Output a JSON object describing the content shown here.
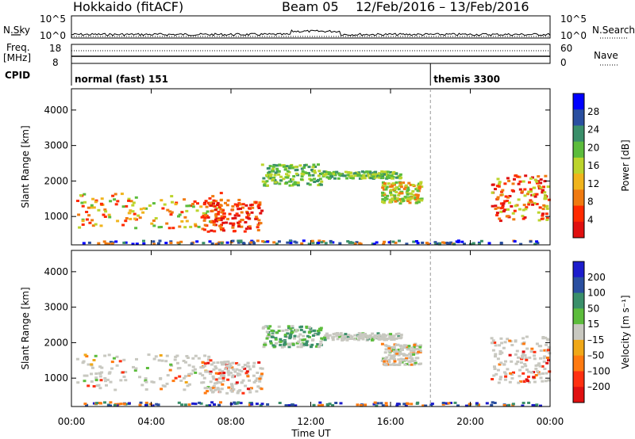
{
  "header": {
    "station": "Hokkaido (fitACF)",
    "beam": "Beam 05",
    "date_range": "12/Feb/2016 – 13/Feb/2016"
  },
  "status": {
    "left_top": "N.Sky",
    "left_freq_1": "Freq.",
    "left_freq_2": "[MHz]",
    "left_cpid": "CPID",
    "right_top": "N.Search",
    "right_mid": "Nave",
    "nsky_ticks": [
      "10^5",
      "10^0"
    ],
    "nsearch_ticks": [
      "10^5",
      "10^0"
    ],
    "freq_ticks": [
      "18",
      "8"
    ],
    "nave_ticks": [
      "60",
      "0"
    ],
    "cpid_labels": [
      {
        "text": "normal (fast) 151",
        "start_hour": 0
      },
      {
        "text": "themis 3300",
        "start_hour": 18
      }
    ]
  },
  "colors": {
    "power_scale": [
      "#0000ff",
      "#2a4fa0",
      "#3a8f6a",
      "#5cbc3c",
      "#bcd42c",
      "#f0b41c",
      "#f07a10",
      "#ff2a00",
      "#e01010"
    ],
    "velocity_scale": [
      "#1c1ccc",
      "#2a4fa0",
      "#3a8f6a",
      "#5cbc3c",
      "#c8c8c0",
      "#f0a818",
      "#ff7a10",
      "#ff3010",
      "#e01010"
    ]
  },
  "x_axis": {
    "title": "Time UT",
    "ticks": [
      "00:00",
      "04:00",
      "08:00",
      "12:00",
      "16:00",
      "20:00",
      "00:00"
    ]
  },
  "chart_data": [
    {
      "type": "heatmap",
      "title": "",
      "xlabel": "Time UT",
      "ylabel": "Slant Range [km]",
      "xlim": [
        0,
        24
      ],
      "ylim": [
        200,
        4600
      ],
      "yticks": [
        1000,
        2000,
        3000,
        4000
      ],
      "colorbar": {
        "label": "Power [dB]",
        "ticks": [
          "28",
          "24",
          "20",
          "16",
          "12",
          "8",
          "4"
        ],
        "range": [
          0,
          30
        ]
      }
    },
    {
      "type": "heatmap",
      "title": "",
      "xlabel": "Time UT",
      "ylabel": "Slant Range [km]",
      "xlim": [
        0,
        24
      ],
      "ylim": [
        200,
        4600
      ],
      "yticks": [
        1000,
        2000,
        3000,
        4000
      ],
      "colorbar": {
        "label": "Velocity [m s⁻¹]",
        "ticks": [
          "200",
          "100",
          "50",
          "15",
          "–15",
          "–50",
          "–100",
          "–200"
        ],
        "range": [
          -250,
          250
        ]
      }
    }
  ]
}
